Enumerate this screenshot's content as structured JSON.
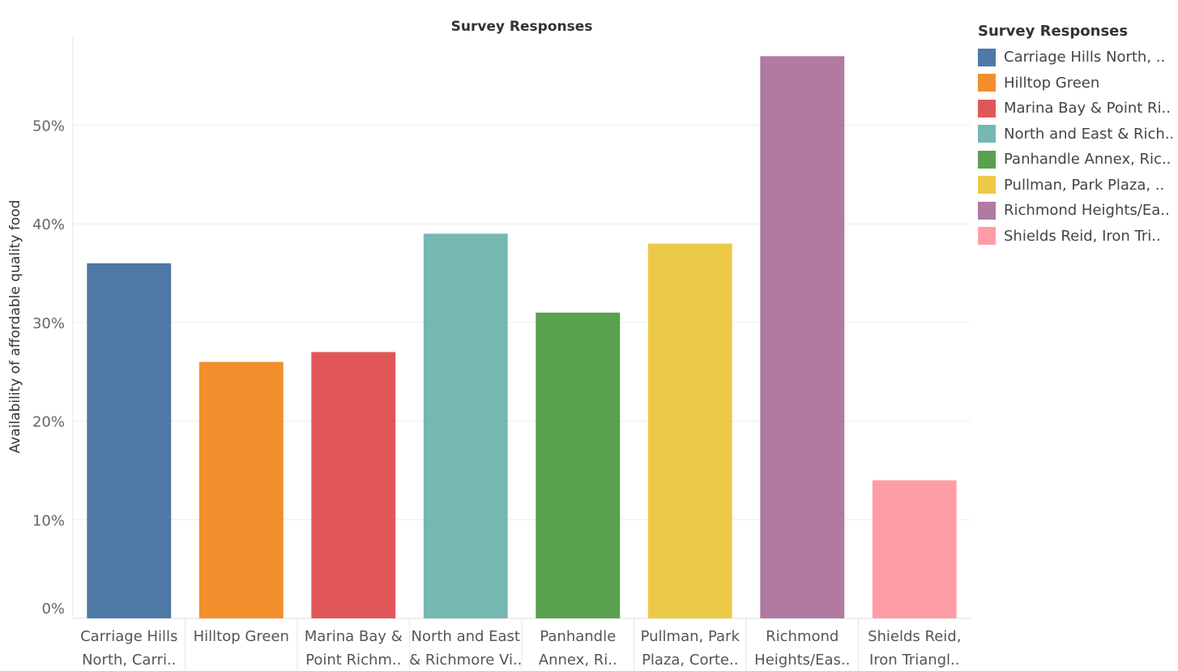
{
  "chart_data": {
    "type": "bar",
    "title": "Survey Responses",
    "ylabel": "Availability of affordable quality food",
    "xlabel": "",
    "ylim": [
      0,
      0.59
    ],
    "y_ticks": [
      "0%",
      "10%",
      "20%",
      "30%",
      "40%",
      "50%"
    ],
    "y_tick_values": [
      0,
      0.1,
      0.2,
      0.3,
      0.4,
      0.5
    ],
    "grid": true,
    "legend_position": "right",
    "categories": [
      [
        "Carriage Hills",
        "North, Carri.."
      ],
      [
        "Hilltop Green"
      ],
      [
        "Marina Bay &",
        "Point Richm.."
      ],
      [
        "North and East",
        "& Richmore Vi.."
      ],
      [
        "Panhandle",
        "Annex, Ri.."
      ],
      [
        "Pullman, Park",
        "Plaza, Corte.."
      ],
      [
        "Richmond",
        "Heights/Eas.."
      ],
      [
        "Shields Reid,",
        "Iron Triangl.."
      ]
    ],
    "values": [
      0.36,
      0.26,
      0.27,
      0.39,
      0.31,
      0.38,
      0.57,
      0.14
    ],
    "colors": [
      "#4e79a7",
      "#f28e2b",
      "#e15759",
      "#76b7b2",
      "#59a14f",
      "#edc948",
      "#b07aa1",
      "#ff9da7"
    ]
  },
  "legend": {
    "title": "Survey Responses",
    "items": [
      "Carriage Hills North, ..",
      "Hilltop Green",
      "Marina Bay & Point Ri..",
      "North and East & Rich..",
      "Panhandle Annex, Ric..",
      "Pullman, Park Plaza, ..",
      "Richmond Heights/Ea..",
      "Shields Reid, Iron Tri.."
    ]
  }
}
